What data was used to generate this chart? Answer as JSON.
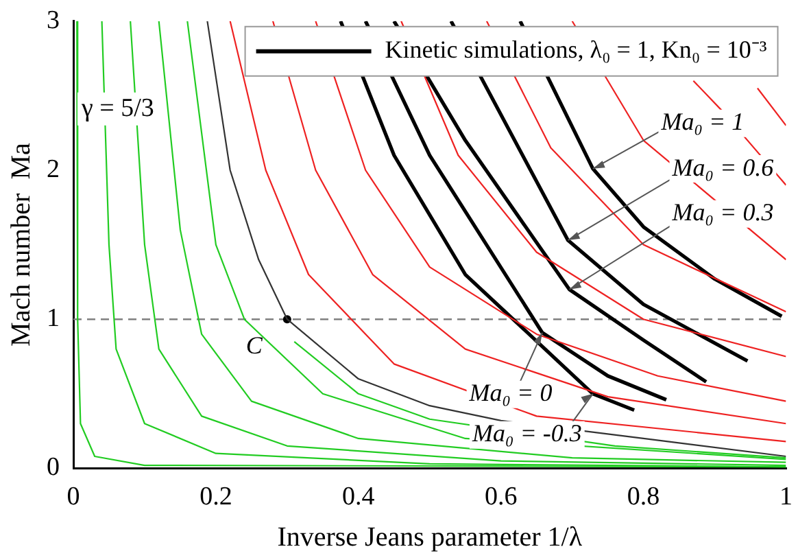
{
  "chart_data": {
    "type": "line",
    "xlabel": "Inverse Jeans parameter 1/λ",
    "ylabel": "Mach number  Ma",
    "xlim": [
      0,
      1
    ],
    "xticks": [
      0,
      0.2,
      0.4,
      0.6,
      0.8,
      1
    ],
    "ylim": [
      0,
      3
    ],
    "yticks": [
      0,
      1,
      2,
      3
    ],
    "grid": false,
    "legend": "top right",
    "marker": "none",
    "line_style": "solid",
    "series": [
      {
        "color": "#22cc22",
        "x": [
          0.005,
          0.006,
          0.01,
          0.03,
          0.1,
          1
        ],
        "values": [
          3,
          1,
          0.3,
          0.08,
          0.02,
          0.01
        ]
      },
      {
        "color": "#22cc22",
        "x": [
          0.04,
          0.05,
          0.06,
          0.1,
          0.2,
          0.5,
          1
        ],
        "values": [
          3,
          1.5,
          0.8,
          0.3,
          0.1,
          0.03,
          0.01
        ]
      },
      {
        "color": "#22cc22",
        "x": [
          0.08,
          0.1,
          0.12,
          0.18,
          0.3,
          0.6,
          1
        ],
        "values": [
          3,
          1.5,
          0.8,
          0.35,
          0.15,
          0.05,
          0.02
        ]
      },
      {
        "color": "#22cc22",
        "x": [
          0.12,
          0.15,
          0.18,
          0.25,
          0.4,
          0.7,
          1
        ],
        "values": [
          3,
          1.6,
          0.9,
          0.45,
          0.2,
          0.07,
          0.04
        ]
      },
      {
        "color": "#22cc22",
        "x": [
          0.16,
          0.2,
          0.24,
          0.35,
          0.55,
          1
        ],
        "values": [
          3,
          1.5,
          1,
          0.5,
          0.2,
          0.06
        ]
      },
      {
        "color": "#22cc22",
        "x": [
          0.31,
          0.4,
          0.5,
          0.76,
          1
        ],
        "values": [
          0.85,
          0.5,
          0.33,
          0.15,
          0.07
        ]
      },
      {
        "color": "#ee2222",
        "x": [
          0.22,
          0.27,
          0.33,
          0.45,
          0.65,
          1
        ],
        "values": [
          3,
          2,
          1.3,
          0.7,
          0.35,
          0.18
        ]
      },
      {
        "color": "#ee2222",
        "x": [
          0.28,
          0.34,
          0.42,
          0.55,
          0.75,
          1
        ],
        "values": [
          3,
          2,
          1.3,
          0.8,
          0.48,
          0.3
        ]
      },
      {
        "color": "#ee2222",
        "x": [
          0.34,
          0.41,
          0.5,
          0.65,
          0.82,
          1
        ],
        "values": [
          3,
          2,
          1.35,
          0.9,
          0.62,
          0.45
        ]
      },
      {
        "color": "#ee2222",
        "x": [
          0.46,
          0.54,
          0.65,
          0.8,
          1
        ],
        "values": [
          3,
          2.1,
          1.45,
          1,
          0.75
        ]
      },
      {
        "color": "#ee2222",
        "x": [
          0.58,
          0.67,
          0.8,
          1
        ],
        "values": [
          3,
          2.15,
          1.5,
          1.05
        ]
      },
      {
        "color": "#ee2222",
        "x": [
          0.7,
          0.8,
          1
        ],
        "values": [
          3,
          2.2,
          1.4
        ]
      },
      {
        "color": "#ee2222",
        "x": [
          0.87,
          0.91,
          1
        ],
        "values": [
          2.6,
          2.4,
          1.9
        ]
      },
      {
        "color": "#ee2222",
        "x": [
          0.96,
          1
        ],
        "values": [
          2.55,
          2.3
        ]
      },
      {
        "color": "#333333",
        "x": [
          0.188,
          0.22,
          0.26,
          0.3,
          0.4,
          0.5,
          0.6,
          0.8,
          1
        ],
        "values": [
          3,
          2,
          1.4,
          1,
          0.6,
          0.42,
          0.32,
          0.2,
          0.08
        ]
      },
      {
        "name": "Kinetic simulations, λ₀ = 1, Kn₀ = 10⁻³",
        "color": "#000000",
        "x": [
          0.627,
          0.729,
          0.8,
          0.9,
          0.994
        ],
        "values": [
          3,
          2.01,
          1.62,
          1.27,
          1.02
        ]
      },
      {
        "color": "#000000",
        "x": [
          0.53,
          0.694,
          0.8,
          0.946
        ],
        "values": [
          3,
          1.53,
          1.1,
          0.72
        ]
      },
      {
        "color": "#000000",
        "x": [
          0.45,
          0.55,
          0.696,
          0.8,
          0.888
        ],
        "values": [
          3,
          2.2,
          1.2,
          0.86,
          0.58
        ]
      },
      {
        "color": "#000000",
        "x": [
          0.41,
          0.5,
          0.658,
          0.75,
          0.832
        ],
        "values": [
          3,
          2.1,
          0.91,
          0.62,
          0.46
        ]
      },
      {
        "color": "#000000",
        "x": [
          0.375,
          0.45,
          0.55,
          0.729,
          0.787
        ],
        "values": [
          3,
          2.1,
          1.3,
          0.5,
          0.39
        ]
      },
      {
        "type": "scatter",
        "marker": "circle",
        "color": "#000000",
        "x": [
          0.3
        ],
        "values": [
          1
        ]
      }
    ],
    "ref_lines": [
      {
        "axis": "y",
        "value": 1,
        "color": "#808080",
        "line_style": "dashed"
      }
    ],
    "annotations": [
      "γ = 5/3",
      {
        "text": "C",
        "x": 0.3,
        "y": 1
      },
      {
        "text": "Ma₀ = 1",
        "x": 0.729,
        "y": 2.01
      },
      {
        "text": "Ma₀ = 0.6",
        "x": 0.694,
        "y": 1.53
      },
      {
        "text": "Ma₀ = 0.3",
        "x": 0.696,
        "y": 1.2
      },
      {
        "text": "Ma₀ = 0",
        "x": 0.658,
        "y": 0.91
      },
      {
        "text": "Ma₀ = -0.3",
        "x": 0.729,
        "y": 0.5
      }
    ]
  }
}
